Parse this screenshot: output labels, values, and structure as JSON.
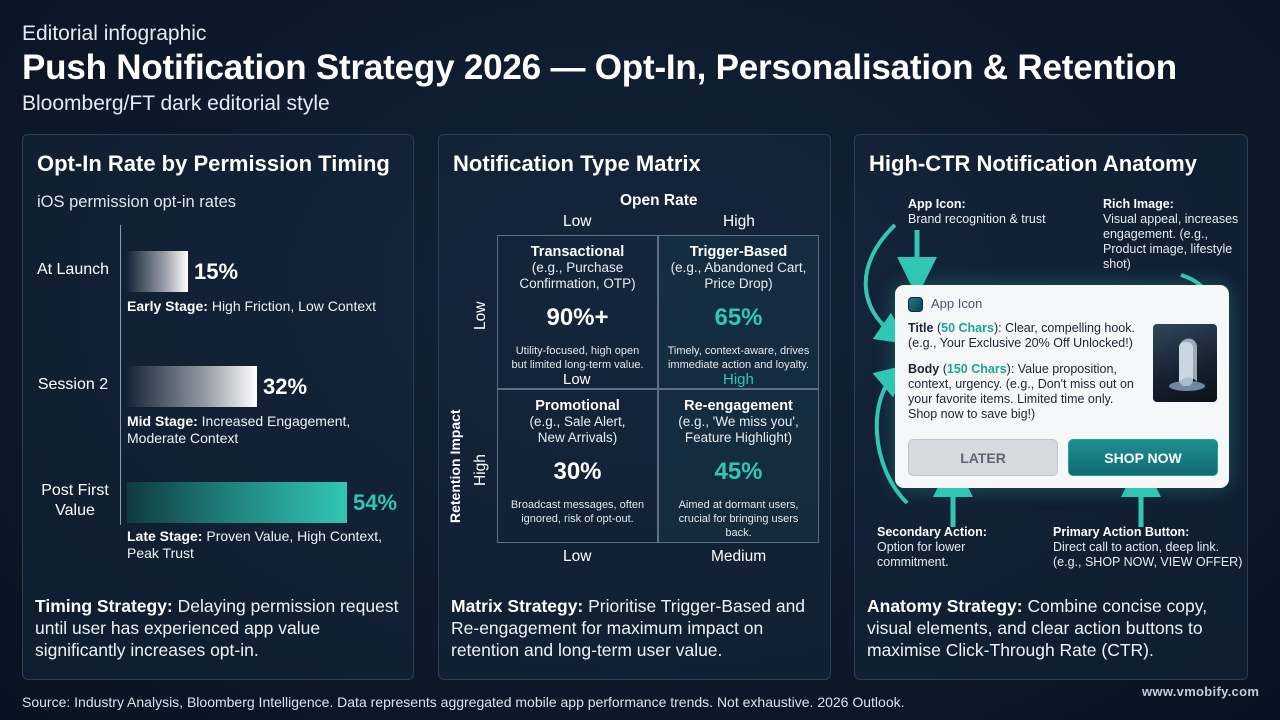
{
  "header": {
    "eyebrow": "Editorial infographic",
    "title": "Push Notification Strategy 2026 — Opt-In, Personalisation & Retention",
    "subtitle": "Bloomberg/FT dark editorial style"
  },
  "colors": {
    "accent": "#31c7b4",
    "background": "#0d1a2c",
    "panel_border": "#2b3d57"
  },
  "panel1": {
    "title": "Opt-In Rate by Permission Timing",
    "caption": "iOS permission opt-in rates",
    "strategy_bold": "Timing Strategy:",
    "strategy_text": " Delaying permission request until user has experienced app value significantly increases opt-in."
  },
  "chart_data": {
    "type": "bar",
    "orientation": "horizontal",
    "title": "Opt-In Rate by Permission Timing",
    "subtitle": "iOS permission opt-in rates",
    "categories": [
      "At Launch",
      "Session 2",
      "Post First Value"
    ],
    "values": [
      15,
      32,
      54
    ],
    "value_labels": [
      "15%",
      "32%",
      "54%"
    ],
    "value_unit": "%",
    "xlim": [
      0,
      54
    ],
    "grid": false,
    "notes": [
      {
        "bold": "Early Stage:",
        "text": " High Friction, Low Context"
      },
      {
        "bold": "Mid Stage:",
        "text": " Increased Engagement, Moderate Context"
      },
      {
        "bold": "Late Stage:",
        "text": " Proven Value, High Context, Peak Trust"
      }
    ]
  },
  "panel2": {
    "title": "Notification Type Matrix",
    "x_axis_title": "Open Rate",
    "x_top_low": "Low",
    "x_top_high": "High",
    "x_mid_low": "Low",
    "x_mid_high": "High",
    "x_bottom_low": "Low",
    "x_bottom_medium": "Medium",
    "y_axis_title": "Retention Impact",
    "y_low": "Low",
    "y_high": "High",
    "cells": [
      {
        "title": "Transactional",
        "sub": "(e.g., Purchase Confirmation, OTP)",
        "pct": "90%+",
        "desc": "Utility-focused, high open but limited long-term value."
      },
      {
        "title": "Trigger-Based",
        "sub": "(e.g., Abandoned Cart, Price Drop)",
        "pct": "65%",
        "desc": "Timely, context-aware, drives immediate action and loyalty."
      },
      {
        "title": "Promotional",
        "sub": "(e.g., Sale Alert, New Arrivals)",
        "pct": "30%",
        "desc": "Broadcast messages, often ignored, risk of opt-out."
      },
      {
        "title": "Re-engagement",
        "sub": "(e.g., 'We miss you', Feature Highlight)",
        "pct": "45%",
        "desc": "Aimed at dormant users, crucial for bringing users back."
      }
    ],
    "strategy_bold": "Matrix Strategy:",
    "strategy_text": " Prioritise Trigger-Based and Re-engagement for maximum impact on retention and long-term user value."
  },
  "panel3": {
    "title": "High-CTR Notification Anatomy",
    "anno_app_icon_bold": "App Icon:",
    "anno_app_icon_text": "Brand recognition & trust",
    "anno_rich_image_bold": "Rich Image:",
    "anno_rich_image_text": "Visual appeal, increases engagement. (e.g., Product image, lifestyle shot)",
    "anno_secondary_bold": "Secondary Action:",
    "anno_secondary_text": "Option for lower commitment.",
    "anno_primary_bold": "Primary Action Button:",
    "anno_primary_text": "Direct call to action, deep link. (e.g., SHOP NOW, VIEW OFFER)",
    "card": {
      "app_label": "App Icon",
      "title_label": "Title",
      "title_chars": "50 Chars",
      "title_text": ": Clear, compelling hook. (e.g., Your Exclusive 20% Off Unlocked!)",
      "body_label": "Body",
      "body_chars": "150 Chars",
      "body_text": ": Value proposition, context, urgency. (e.g., Don't miss out on your favorite items. Limited time only. Shop now to save big!)",
      "later_label": "LATER",
      "shop_label": "SHOP NOW"
    },
    "strategy_bold": "Anatomy Strategy:",
    "strategy_text": " Combine concise copy, visual elements, and clear action buttons to maximise Click-Through Rate (CTR)."
  },
  "footer": {
    "source": "Source: Industry Analysis, Bloomberg Intelligence. Data represents aggregated mobile app performance trends. Not exhaustive. 2026 Outlook.",
    "brand": "www.vmobify.com"
  }
}
